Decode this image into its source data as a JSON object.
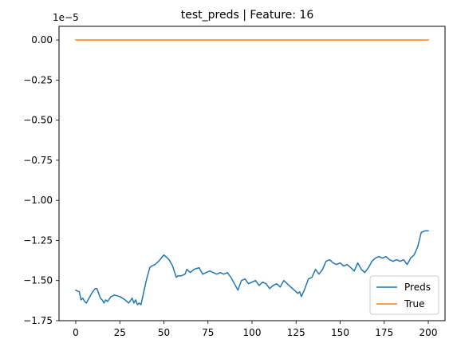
{
  "chart_data": {
    "type": "line",
    "title": "test_preds | Feature: 16",
    "xlabel": "",
    "ylabel": "",
    "y_offset_label": "1e−5",
    "xlim": [
      -9.5,
      209.5
    ],
    "ylim": [
      -1.75,
      0.085
    ],
    "grid": false,
    "legend_position": "lower-right",
    "x_ticks": [
      0,
      25,
      50,
      75,
      100,
      125,
      150,
      175,
      200
    ],
    "x_tick_labels": [
      "0",
      "25",
      "50",
      "75",
      "100",
      "125",
      "150",
      "175",
      "200"
    ],
    "y_ticks": [
      0.0,
      -0.25,
      -0.5,
      -0.75,
      -1.0,
      -1.25,
      -1.5,
      -1.75
    ],
    "y_tick_labels": [
      "0.00",
      "−0.25",
      "−0.50",
      "−0.75",
      "−1.00",
      "−1.25",
      "−1.50",
      "−1.75"
    ],
    "series": [
      {
        "name": "Preds",
        "color": "#1f77b4",
        "x": [
          0,
          2,
          3,
          4,
          5,
          6,
          7,
          9,
          11,
          12,
          13,
          14,
          15,
          16,
          17,
          18,
          20,
          22,
          25,
          28,
          30,
          32,
          33,
          34,
          35,
          36,
          37,
          38,
          39,
          40,
          42,
          43,
          45,
          47,
          50,
          51,
          53,
          55,
          57,
          58,
          60,
          62,
          63,
          65,
          67,
          70,
          72,
          74,
          76,
          78,
          80,
          82,
          84,
          86,
          88,
          90,
          92,
          94,
          96,
          98,
          100,
          102,
          104,
          106,
          108,
          110,
          112,
          114,
          116,
          118,
          120,
          122,
          124,
          126,
          127,
          128,
          130,
          132,
          134,
          136,
          138,
          140,
          142,
          144,
          146,
          148,
          150,
          152,
          154,
          156,
          158,
          160,
          162,
          164,
          166,
          168,
          170,
          172,
          174,
          176,
          178,
          180,
          182,
          184,
          186,
          188,
          190,
          192,
          194,
          196,
          198,
          200
        ],
        "y": [
          -1.56,
          -1.57,
          -1.62,
          -1.61,
          -1.63,
          -1.64,
          -1.62,
          -1.58,
          -1.55,
          -1.55,
          -1.58,
          -1.61,
          -1.62,
          -1.64,
          -1.62,
          -1.63,
          -1.6,
          -1.59,
          -1.6,
          -1.62,
          -1.64,
          -1.61,
          -1.64,
          -1.62,
          -1.65,
          -1.64,
          -1.65,
          -1.6,
          -1.55,
          -1.5,
          -1.42,
          -1.41,
          -1.4,
          -1.38,
          -1.34,
          -1.35,
          -1.37,
          -1.41,
          -1.48,
          -1.47,
          -1.47,
          -1.46,
          -1.43,
          -1.45,
          -1.43,
          -1.42,
          -1.46,
          -1.45,
          -1.44,
          -1.45,
          -1.46,
          -1.45,
          -1.46,
          -1.45,
          -1.48,
          -1.52,
          -1.56,
          -1.5,
          -1.49,
          -1.52,
          -1.51,
          -1.5,
          -1.53,
          -1.51,
          -1.52,
          -1.55,
          -1.53,
          -1.52,
          -1.54,
          -1.5,
          -1.52,
          -1.54,
          -1.56,
          -1.58,
          -1.57,
          -1.6,
          -1.55,
          -1.49,
          -1.48,
          -1.43,
          -1.46,
          -1.43,
          -1.38,
          -1.37,
          -1.39,
          -1.4,
          -1.39,
          -1.41,
          -1.4,
          -1.42,
          -1.44,
          -1.39,
          -1.43,
          -1.45,
          -1.42,
          -1.38,
          -1.36,
          -1.35,
          -1.36,
          -1.35,
          -1.37,
          -1.38,
          -1.37,
          -1.38,
          -1.37,
          -1.4,
          -1.36,
          -1.34,
          -1.29,
          -1.2,
          -1.19,
          -1.19
        ]
      },
      {
        "name": "True",
        "color": "#ff7f0e",
        "x": [
          0,
          200
        ],
        "y": [
          0,
          0
        ]
      }
    ]
  }
}
